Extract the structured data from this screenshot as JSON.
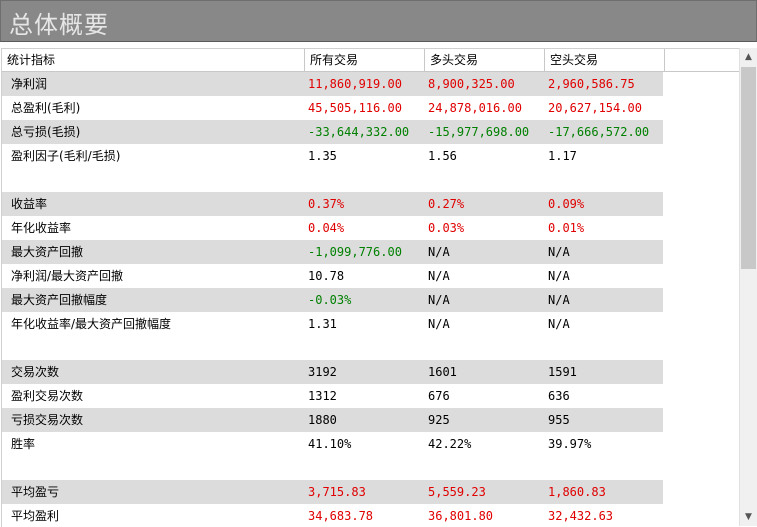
{
  "title": "总体概要",
  "columns": [
    "统计指标",
    "所有交易",
    "多头交易",
    "空头交易"
  ],
  "colors": {
    "positive": "#e00000",
    "negative": "#008000",
    "neutral": "#000000",
    "shade": "#dcdcdc"
  },
  "rows": [
    {
      "label": "净利润",
      "shaded": true,
      "cells": [
        {
          "v": "11,860,919.00",
          "c": "red"
        },
        {
          "v": "8,900,325.00",
          "c": "red"
        },
        {
          "v": "2,960,586.75",
          "c": "red"
        }
      ]
    },
    {
      "label": "总盈利(毛利)",
      "shaded": false,
      "cells": [
        {
          "v": "45,505,116.00",
          "c": "red"
        },
        {
          "v": "24,878,016.00",
          "c": "red"
        },
        {
          "v": "20,627,154.00",
          "c": "red"
        }
      ]
    },
    {
      "label": "总亏损(毛损)",
      "shaded": true,
      "cells": [
        {
          "v": "-33,644,332.00",
          "c": "green"
        },
        {
          "v": "-15,977,698.00",
          "c": "green"
        },
        {
          "v": "-17,666,572.00",
          "c": "green"
        }
      ]
    },
    {
      "label": "盈利因子(毛利/毛损)",
      "shaded": false,
      "cells": [
        {
          "v": "1.35",
          "c": "black"
        },
        {
          "v": "1.56",
          "c": "black"
        },
        {
          "v": "1.17",
          "c": "black"
        }
      ]
    },
    {
      "spacer": true
    },
    {
      "label": "收益率",
      "shaded": true,
      "cells": [
        {
          "v": "0.37%",
          "c": "red"
        },
        {
          "v": "0.27%",
          "c": "red"
        },
        {
          "v": "0.09%",
          "c": "red"
        }
      ]
    },
    {
      "label": "年化收益率",
      "shaded": false,
      "cells": [
        {
          "v": "0.04%",
          "c": "red"
        },
        {
          "v": "0.03%",
          "c": "red"
        },
        {
          "v": "0.01%",
          "c": "red"
        }
      ]
    },
    {
      "label": "最大资产回撤",
      "shaded": true,
      "cells": [
        {
          "v": "-1,099,776.00",
          "c": "green"
        },
        {
          "v": "N/A",
          "c": "black"
        },
        {
          "v": "N/A",
          "c": "black"
        }
      ]
    },
    {
      "label": "净利润/最大资产回撤",
      "shaded": false,
      "cells": [
        {
          "v": "10.78",
          "c": "black"
        },
        {
          "v": "N/A",
          "c": "black"
        },
        {
          "v": "N/A",
          "c": "black"
        }
      ]
    },
    {
      "label": "最大资产回撤幅度",
      "shaded": true,
      "cells": [
        {
          "v": "-0.03%",
          "c": "green"
        },
        {
          "v": "N/A",
          "c": "black"
        },
        {
          "v": "N/A",
          "c": "black"
        }
      ]
    },
    {
      "label": "年化收益率/最大资产回撤幅度",
      "shaded": false,
      "cells": [
        {
          "v": "1.31",
          "c": "black"
        },
        {
          "v": "N/A",
          "c": "black"
        },
        {
          "v": "N/A",
          "c": "black"
        }
      ]
    },
    {
      "spacer": true
    },
    {
      "label": "交易次数",
      "shaded": true,
      "cells": [
        {
          "v": "3192",
          "c": "black"
        },
        {
          "v": "1601",
          "c": "black"
        },
        {
          "v": "1591",
          "c": "black"
        }
      ]
    },
    {
      "label": "盈利交易次数",
      "shaded": false,
      "cells": [
        {
          "v": "1312",
          "c": "black"
        },
        {
          "v": "676",
          "c": "black"
        },
        {
          "v": "636",
          "c": "black"
        }
      ]
    },
    {
      "label": "亏损交易次数",
      "shaded": true,
      "cells": [
        {
          "v": "1880",
          "c": "black"
        },
        {
          "v": "925",
          "c": "black"
        },
        {
          "v": "955",
          "c": "black"
        }
      ]
    },
    {
      "label": "胜率",
      "shaded": false,
      "cells": [
        {
          "v": "41.10%",
          "c": "black"
        },
        {
          "v": "42.22%",
          "c": "black"
        },
        {
          "v": "39.97%",
          "c": "black"
        }
      ]
    },
    {
      "spacer": true
    },
    {
      "label": "平均盈亏",
      "shaded": true,
      "cells": [
        {
          "v": "3,715.83",
          "c": "red"
        },
        {
          "v": "5,559.23",
          "c": "red"
        },
        {
          "v": "1,860.83",
          "c": "red"
        }
      ]
    },
    {
      "label": "平均盈利",
      "shaded": false,
      "cells": [
        {
          "v": "34,683.78",
          "c": "red"
        },
        {
          "v": "36,801.80",
          "c": "red"
        },
        {
          "v": "32,432.63",
          "c": "red"
        }
      ]
    }
  ],
  "scrollbar": {
    "up_icon": "▲",
    "down_icon": "▼"
  }
}
